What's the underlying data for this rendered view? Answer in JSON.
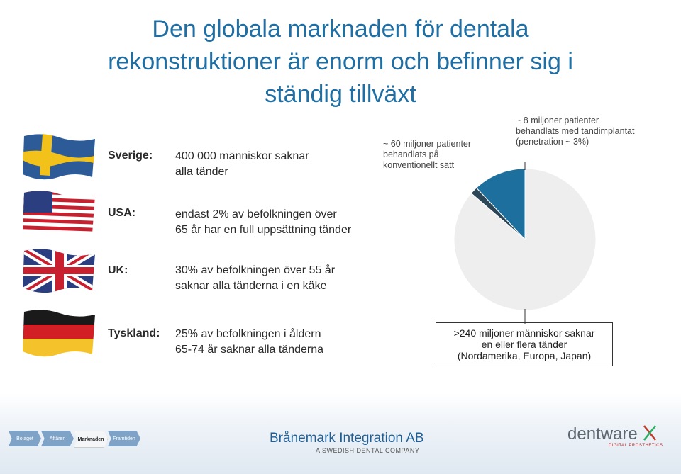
{
  "title": {
    "line1": "Den globala marknaden för dentala",
    "line2": "rekonstruktioner är enorm och befinner sig i",
    "line3": "ständig tillväxt"
  },
  "countries": [
    {
      "name": "Sverige:",
      "line1": "400 000 människor saknar",
      "line2": "alla tänder"
    },
    {
      "name": "USA:",
      "line1": "endast 2% av befolkningen över",
      "line2": "65 år har en full uppsättning tänder"
    },
    {
      "name": "UK:",
      "line1": "30% av befolkningen över 55 år",
      "line2": "saknar alla tänderna i en käke"
    },
    {
      "name": "Tyskland:",
      "line1": "25% av befolkningen i åldern",
      "line2": "65-74 år saknar alla tänderna"
    }
  ],
  "pie": {
    "label_conventional": {
      "line1": "~ 60 miljoner patienter",
      "line2": "behandlats på",
      "line3": "konventionellt sätt"
    },
    "label_implant": {
      "line1": "~ 8 miljoner patienter",
      "line2": "behandlats med tandimplantat",
      "line3": "(penetration ~ 3%)"
    },
    "slices": [
      {
        "name": "conventional",
        "percent": 12,
        "color": "#1d6f9e"
      },
      {
        "name": "implant",
        "percent": 1.7,
        "color": "#2c4657"
      },
      {
        "name": "untreated",
        "percent": 86.3,
        "color": "#eeeeee"
      }
    ]
  },
  "box_note": {
    "line1": ">240 miljoner människor saknar",
    "line2": "en eller flera tänder",
    "line3": "(Nordamerika,  Europa, Japan)"
  },
  "footer": {
    "tabs": [
      "Bolaget",
      "Affären",
      "Marknaden",
      "Framtiden"
    ],
    "active_tab": "Marknaden",
    "brand": "Brånemark Integration AB",
    "brand_sub": "A SWEDISH DENTAL COMPANY",
    "dentware": "dentware",
    "dentware_sub": "DIGITAL PROSTHETICS"
  },
  "colors": {
    "title": "#1f6fa5",
    "pie_main": "#1d6f9e",
    "pie_dark": "#2c4657"
  }
}
